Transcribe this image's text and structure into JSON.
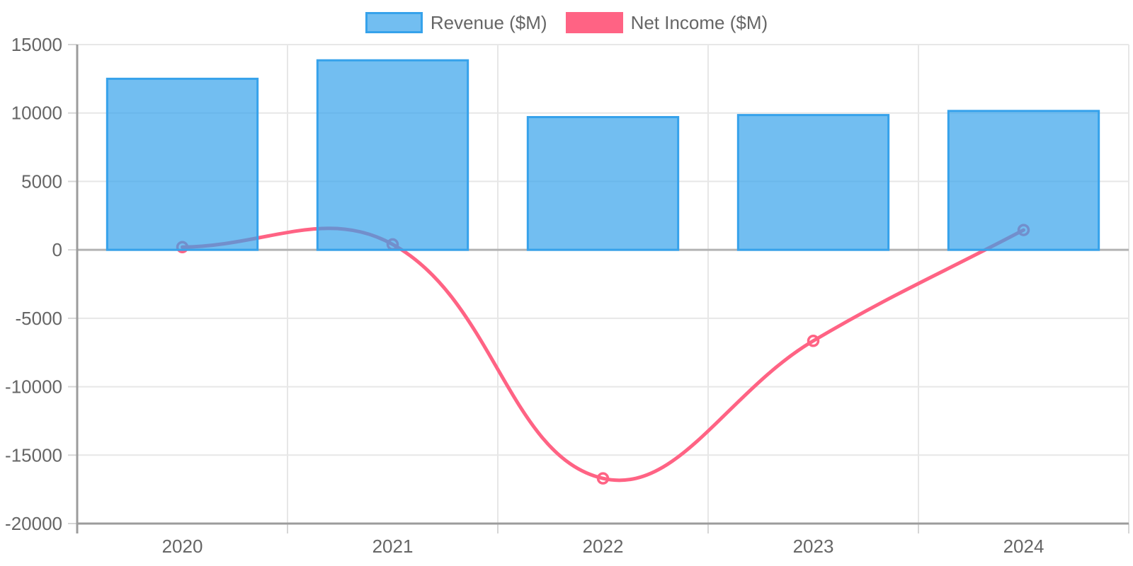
{
  "chart_data": {
    "type": "bar+line combo",
    "title": "",
    "categories": [
      "2020",
      "2021",
      "2022",
      "2023",
      "2024"
    ],
    "series": [
      {
        "name": "Revenue ($M)",
        "type": "bar",
        "values": [
          12500,
          13850,
          9700,
          9850,
          10150
        ],
        "fill_color": "rgba(54,162,235,0.7)",
        "border_color": "#36a2eb"
      },
      {
        "name": "Net Income ($M)",
        "type": "line",
        "values": [
          200,
          400,
          -16700,
          -6650,
          1450
        ],
        "line_color": "#ff6384",
        "tension": 0.4,
        "point_radius": 7,
        "point_style": "hollow-circle"
      }
    ],
    "xlabel": "",
    "ylabel": "",
    "ylim": [
      -20000,
      15000
    ],
    "yticks": [
      15000,
      10000,
      5000,
      0,
      -5000,
      -10000,
      -15000,
      -20000
    ],
    "grid": "on",
    "legend_position": "top-center",
    "colors": {
      "axis_text": "#666666",
      "grid_line": "#e7e7e7",
      "zero_line": "#b3b3b3",
      "axis_border": "#9c9c9c",
      "tick_mark": "#d6d6d6",
      "background": "#ffffff"
    }
  }
}
